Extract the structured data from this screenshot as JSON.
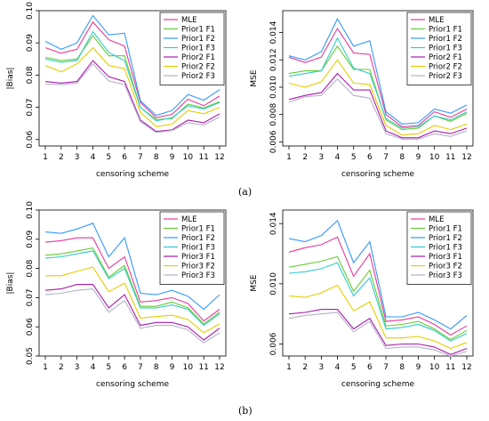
{
  "figure": {
    "panel_labels": [
      "(a)",
      "(b)"
    ]
  },
  "chart_data": [
    {
      "type": "line",
      "panel": "a",
      "xlabel": "censoring scheme",
      "ylabel": "|Bias|",
      "x": [
        1,
        2,
        3,
        4,
        5,
        6,
        7,
        8,
        9,
        10,
        11,
        12
      ],
      "ylim": [
        0.058,
        0.1
      ],
      "yticks": [
        0.06,
        0.07,
        0.08,
        0.09,
        0.1
      ],
      "ytick_labels": [
        "0.06",
        "0.07",
        "0.08",
        "0.09",
        "0.10"
      ],
      "legend_position": "top-right",
      "series": [
        {
          "name": "MLE",
          "color": "#e8399a",
          "values": [
            0.0885,
            0.0868,
            0.088,
            0.0965,
            0.091,
            0.089,
            0.0715,
            0.0668,
            0.0678,
            0.0725,
            0.0705,
            0.0735
          ]
        },
        {
          "name": "Prior1 F1",
          "color": "#66cc33",
          "values": [
            0.0855,
            0.0845,
            0.085,
            0.0922,
            0.086,
            0.086,
            0.07,
            0.0662,
            0.0665,
            0.071,
            0.0698,
            0.0718
          ]
        },
        {
          "name": "Prior1 F2",
          "color": "#3399ff",
          "values": [
            0.0905,
            0.088,
            0.09,
            0.0985,
            0.0925,
            0.093,
            0.072,
            0.0675,
            0.069,
            0.074,
            0.0722,
            0.0755
          ]
        },
        {
          "name": "Prior1 F3",
          "color": "#33cccc",
          "values": [
            0.085,
            0.084,
            0.0845,
            0.0935,
            0.087,
            0.0845,
            0.07,
            0.0658,
            0.0668,
            0.0705,
            0.0695,
            0.0715
          ]
        },
        {
          "name": "Prior2 F1",
          "color": "#aa1aaa",
          "values": [
            0.078,
            0.0775,
            0.078,
            0.0845,
            0.0795,
            0.078,
            0.066,
            0.0625,
            0.063,
            0.066,
            0.0652,
            0.068
          ]
        },
        {
          "name": "Prior2 F2",
          "color": "#e6cc00",
          "values": [
            0.083,
            0.081,
            0.0835,
            0.0885,
            0.083,
            0.082,
            0.0685,
            0.064,
            0.0648,
            0.069,
            0.068,
            0.07
          ]
        },
        {
          "name": "Prior2 F3",
          "color": "#b3b3cc",
          "values": [
            0.0772,
            0.077,
            0.0775,
            0.0835,
            0.0782,
            0.077,
            0.0655,
            0.0622,
            0.0628,
            0.0652,
            0.0645,
            0.067
          ]
        }
      ]
    },
    {
      "type": "line",
      "panel": "a",
      "xlabel": "censoring scheme",
      "ylabel": "MSE",
      "x": [
        1,
        2,
        3,
        4,
        5,
        6,
        7,
        8,
        9,
        10,
        11,
        12
      ],
      "ylim": [
        0.0057,
        0.0156
      ],
      "yticks": [
        0.006,
        0.008,
        0.01,
        0.012,
        0.014
      ],
      "ytick_labels": [
        "0.006",
        "0.008",
        "0.010",
        "0.012",
        "0.014"
      ],
      "legend_position": "top-right",
      "series": [
        {
          "name": "MLE",
          "color": "#e8399a",
          "values": [
            0.0122,
            0.0118,
            0.0122,
            0.0143,
            0.0125,
            0.0124,
            0.008,
            0.0071,
            0.0072,
            0.0082,
            0.0078,
            0.0084
          ]
        },
        {
          "name": "Prior1 F1",
          "color": "#66cc33",
          "values": [
            0.011,
            0.0112,
            0.0112,
            0.013,
            0.0113,
            0.0113,
            0.0076,
            0.0069,
            0.007,
            0.0079,
            0.0075,
            0.0081
          ]
        },
        {
          "name": "Prior1 F2",
          "color": "#3399ff",
          "values": [
            0.0123,
            0.012,
            0.0126,
            0.015,
            0.013,
            0.0134,
            0.0082,
            0.0073,
            0.0074,
            0.0084,
            0.0081,
            0.0087
          ]
        },
        {
          "name": "Prior1 F3",
          "color": "#33cccc",
          "values": [
            0.0108,
            0.011,
            0.0112,
            0.0136,
            0.0114,
            0.011,
            0.0077,
            0.007,
            0.0071,
            0.0079,
            0.0076,
            0.0082
          ]
        },
        {
          "name": "Prior2 F1",
          "color": "#aa1aaa",
          "values": [
            0.0091,
            0.0094,
            0.0096,
            0.011,
            0.0098,
            0.0098,
            0.0068,
            0.0063,
            0.0063,
            0.0068,
            0.0066,
            0.007
          ]
        },
        {
          "name": "Prior2 F2",
          "color": "#e6cc00",
          "values": [
            0.0103,
            0.01,
            0.0104,
            0.012,
            0.0103,
            0.0102,
            0.0072,
            0.0065,
            0.0066,
            0.0072,
            0.0069,
            0.0073
          ]
        },
        {
          "name": "Prior2 F3",
          "color": "#b3b3cc",
          "values": [
            0.0089,
            0.0093,
            0.0094,
            0.0106,
            0.0094,
            0.0092,
            0.0066,
            0.0062,
            0.0062,
            0.0066,
            0.0064,
            0.0068
          ]
        }
      ]
    },
    {
      "type": "line",
      "panel": "b",
      "xlabel": "censoring scheme",
      "ylabel": "|Bias|",
      "x": [
        1,
        2,
        3,
        4,
        5,
        6,
        7,
        8,
        9,
        10,
        11,
        12
      ],
      "ylim": [
        0.05,
        0.1
      ],
      "yticks": [
        0.05,
        0.06,
        0.07,
        0.08,
        0.09,
        0.1
      ],
      "ytick_labels": [
        "0.05",
        "0.06",
        "0.07",
        "0.08",
        "0.09",
        "0.10"
      ],
      "legend_position": "top-right",
      "series": [
        {
          "name": "MLE",
          "color": "#e8399a",
          "values": [
            0.089,
            0.0895,
            0.0905,
            0.0905,
            0.08,
            0.084,
            0.0685,
            0.069,
            0.07,
            0.068,
            0.062,
            0.066
          ]
        },
        {
          "name": "Prior1 F1",
          "color": "#66cc33",
          "values": [
            0.0845,
            0.085,
            0.086,
            0.087,
            0.077,
            0.081,
            0.067,
            0.067,
            0.0685,
            0.0665,
            0.061,
            0.065
          ]
        },
        {
          "name": "Prior1 F2",
          "color": "#3399ff",
          "values": [
            0.0925,
            0.092,
            0.0935,
            0.0955,
            0.084,
            0.0905,
            0.0715,
            0.071,
            0.0725,
            0.0705,
            0.066,
            0.071
          ]
        },
        {
          "name": "Prior1 F3",
          "color": "#33cccc",
          "values": [
            0.0835,
            0.084,
            0.085,
            0.086,
            0.0765,
            0.08,
            0.0665,
            0.0665,
            0.0675,
            0.066,
            0.0605,
            0.0645
          ]
        },
        {
          "name": "Prior3 F1",
          "color": "#aa1aaa",
          "values": [
            0.0725,
            0.073,
            0.0745,
            0.0745,
            0.0665,
            0.071,
            0.0605,
            0.0615,
            0.0615,
            0.06,
            0.0555,
            0.0595
          ]
        },
        {
          "name": "Prior3 F2",
          "color": "#e6cc00",
          "values": [
            0.0775,
            0.0775,
            0.079,
            0.0805,
            0.072,
            0.075,
            0.063,
            0.0635,
            0.064,
            0.0625,
            0.058,
            0.061
          ]
        },
        {
          "name": "Prior3 F3",
          "color": "#b3b3cc",
          "values": [
            0.071,
            0.0715,
            0.0725,
            0.073,
            0.065,
            0.069,
            0.0595,
            0.0605,
            0.0605,
            0.059,
            0.0545,
            0.058
          ]
        }
      ]
    },
    {
      "type": "line",
      "panel": "b",
      "xlabel": "censoring scheme",
      "ylabel": "MSE",
      "x": [
        1,
        2,
        3,
        4,
        5,
        6,
        7,
        8,
        9,
        10,
        11,
        12
      ],
      "ylim": [
        0.0052,
        0.0149
      ],
      "yticks": [
        0.006,
        0.01,
        0.014
      ],
      "ytick_labels": [
        "0.006",
        "0.010",
        "0.014"
      ],
      "legend_position": "top-right",
      "series": [
        {
          "name": "MLE",
          "color": "#e8399a",
          "values": [
            0.0121,
            0.0124,
            0.0126,
            0.0131,
            0.0105,
            0.012,
            0.0075,
            0.0076,
            0.0078,
            0.0073,
            0.0066,
            0.0072
          ]
        },
        {
          "name": "Prior1 F1",
          "color": "#66cc33",
          "values": [
            0.0111,
            0.0113,
            0.0115,
            0.0118,
            0.0095,
            0.0109,
            0.0072,
            0.0073,
            0.0075,
            0.007,
            0.0063,
            0.0069
          ]
        },
        {
          "name": "Prior1 F2",
          "color": "#3399ff",
          "values": [
            0.013,
            0.0128,
            0.0132,
            0.0142,
            0.0114,
            0.0128,
            0.0078,
            0.0078,
            0.0081,
            0.0076,
            0.007,
            0.0079
          ]
        },
        {
          "name": "Prior1 F3",
          "color": "#33cccc",
          "values": [
            0.0107,
            0.0108,
            0.011,
            0.0114,
            0.0092,
            0.0104,
            0.007,
            0.0071,
            0.0073,
            0.0069,
            0.0062,
            0.0067
          ]
        },
        {
          "name": "Prior3 F1",
          "color": "#aa1aaa",
          "values": [
            0.008,
            0.0081,
            0.0083,
            0.0083,
            0.007,
            0.0077,
            0.0059,
            0.006,
            0.006,
            0.0058,
            0.0053,
            0.0057
          ]
        },
        {
          "name": "Prior3 F2",
          "color": "#e6cc00",
          "values": [
            0.0092,
            0.0091,
            0.0094,
            0.0099,
            0.0082,
            0.0088,
            0.0064,
            0.0064,
            0.0065,
            0.0062,
            0.0057,
            0.0061
          ]
        },
        {
          "name": "Prior3 F3",
          "color": "#b3b3cc",
          "values": [
            0.0077,
            0.0079,
            0.008,
            0.0081,
            0.0068,
            0.0075,
            0.0057,
            0.0058,
            0.0058,
            0.0056,
            0.0052,
            0.0055
          ]
        }
      ]
    }
  ]
}
